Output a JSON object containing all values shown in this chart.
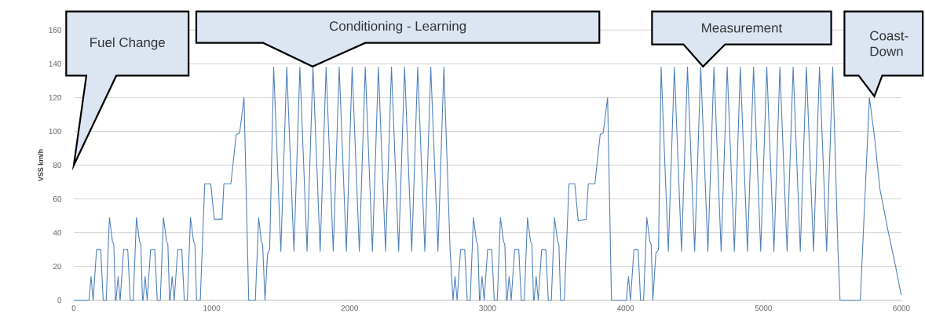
{
  "chart_data": {
    "type": "line",
    "ylabel": "VSS km/h",
    "xlim": [
      0,
      6000
    ],
    "xticks": [
      0,
      1000,
      2000,
      3000,
      4000,
      5000,
      6000
    ],
    "ylim": [
      0,
      160
    ],
    "yticks": [
      0,
      20,
      40,
      60,
      80,
      100,
      120,
      140,
      160
    ],
    "grid": "y",
    "marker": "none",
    "line_style": "solid",
    "annotations": [
      "Fuel Change",
      "Conditioning - Learning",
      "Measurement",
      "Coast-Down"
    ],
    "series": [
      {
        "color": "#4f81bd",
        "x": [
          0,
          110,
          125,
          140,
          165,
          195,
          213,
          235,
          258,
          280,
          290,
          302,
          306,
          321,
          336,
          361,
          391,
          409,
          431,
          454,
          476,
          486,
          498,
          502,
          517,
          532,
          557,
          587,
          605,
          627,
          650,
          672,
          682,
          694,
          698,
          713,
          728,
          753,
          783,
          801,
          823,
          846,
          868,
          878,
          890,
          917,
          949,
          993,
          1018,
          1075,
          1088,
          1139,
          1177,
          1202,
          1234,
          1268,
          1316,
          1340,
          1359,
          1369,
          1386,
          1405,
          1420,
          1449,
          1501,
          1544,
          1596,
          1639,
          1691,
          1734,
          1786,
          1829,
          1881,
          1924,
          1976,
          2018,
          2070,
          2113,
          2165,
          2208,
          2260,
          2303,
          2355,
          2398,
          2450,
          2493,
          2545,
          2588,
          2640,
          2683,
          2728,
          2749,
          2764,
          2779,
          2804,
          2834,
          2852,
          2874,
          2897,
          2919,
          2929,
          2941,
          2945,
          2960,
          2975,
          3000,
          3030,
          3048,
          3070,
          3093,
          3115,
          3125,
          3137,
          3141,
          3156,
          3171,
          3196,
          3226,
          3244,
          3266,
          3289,
          3311,
          3321,
          3333,
          3337,
          3352,
          3367,
          3392,
          3422,
          3440,
          3462,
          3485,
          3507,
          3517,
          3529,
          3556,
          3590,
          3632,
          3657,
          3714,
          3730,
          3778,
          3816,
          3838,
          3870,
          3898,
          4006,
          4021,
          4036,
          4061,
          4091,
          4109,
          4131,
          4154,
          4176,
          4186,
          4198,
          4220,
          4239,
          4258,
          4310,
          4354,
          4406,
          4449,
          4501,
          4545,
          4597,
          4641,
          4693,
          4737,
          4789,
          4832,
          4884,
          4928,
          4980,
          5024,
          5076,
          5119,
          5171,
          5215,
          5267,
          5311,
          5363,
          5406,
          5458,
          5502,
          5540,
          5555,
          5702,
          5768,
          5806,
          5844,
          5901,
          5958,
          5996,
          6000
        ],
        "values": [
          0,
          0,
          14,
          0,
          30,
          30,
          0,
          0,
          49,
          35,
          33,
          0,
          0,
          14,
          0,
          30,
          30,
          0,
          0,
          49,
          35,
          33,
          0,
          0,
          14,
          0,
          30,
          30,
          0,
          0,
          49,
          35,
          33,
          0,
          0,
          14,
          0,
          30,
          30,
          0,
          0,
          49,
          35,
          33,
          0,
          0,
          69,
          69,
          48,
          48,
          69,
          69,
          98,
          99,
          120,
          0,
          0,
          49,
          35,
          33,
          0,
          28,
          30,
          138,
          29,
          138,
          29,
          138,
          29,
          138,
          29,
          138,
          29,
          138,
          29,
          138,
          29,
          138,
          29,
          138,
          29,
          138,
          29,
          138,
          29,
          138,
          29,
          138,
          29,
          138,
          30,
          0,
          14,
          0,
          30,
          30,
          0,
          0,
          49,
          35,
          33,
          0,
          0,
          14,
          0,
          30,
          30,
          0,
          0,
          49,
          35,
          33,
          0,
          0,
          14,
          0,
          30,
          30,
          0,
          0,
          49,
          35,
          33,
          0,
          0,
          14,
          0,
          30,
          30,
          0,
          0,
          49,
          35,
          33,
          0,
          0,
          69,
          69,
          47,
          48,
          69,
          69,
          98,
          99,
          120,
          0,
          0,
          14,
          0,
          30,
          30,
          0,
          0,
          49,
          35,
          33,
          0,
          28,
          30,
          138,
          29,
          138,
          29,
          138,
          29,
          138,
          29,
          138,
          29,
          138,
          29,
          138,
          29,
          138,
          29,
          138,
          29,
          138,
          29,
          138,
          29,
          138,
          29,
          138,
          29,
          138,
          30,
          0,
          0,
          120,
          96,
          66,
          42,
          20,
          4,
          3
        ]
      }
    ]
  }
}
